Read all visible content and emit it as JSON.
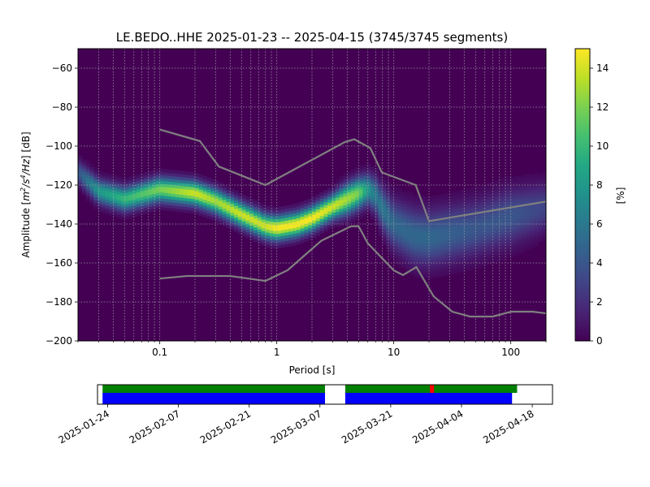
{
  "chart_data": [
    {
      "type": "heatmap",
      "title": "LE.BEDO..HHE   2025-01-23 -- 2025-04-15  (3745/3745 segments)",
      "xlabel": "Period [s]",
      "ylabel_prefix": "Amplitude [",
      "ylabel_unit": {
        "base1": "m",
        "sup1": "2",
        "base2": "/s",
        "sup2": "4",
        "base3": "/Hz"
      },
      "ylabel_suffix": "] [dB]",
      "x_scale": "log",
      "xlim": [
        0.02,
        200
      ],
      "ylim": [
        -200,
        -50
      ],
      "x_ticks": [
        {
          "value": 0.1,
          "label": "0.1"
        },
        {
          "value": 1,
          "label": "1"
        },
        {
          "value": 10,
          "label": "10"
        },
        {
          "value": 100,
          "label": "100"
        }
      ],
      "y_ticks": [
        {
          "value": -60,
          "label": "−60"
        },
        {
          "value": -80,
          "label": "−80"
        },
        {
          "value": -100,
          "label": "−100"
        },
        {
          "value": -120,
          "label": "−120"
        },
        {
          "value": -140,
          "label": "−140"
        },
        {
          "value": -160,
          "label": "−160"
        },
        {
          "value": -180,
          "label": "−180"
        },
        {
          "value": -200,
          "label": "−200"
        }
      ],
      "grid": true,
      "colormap": "viridis",
      "colorbar": {
        "label": "[%]",
        "range": [
          0,
          15
        ],
        "ticks": [
          {
            "value": 0,
            "label": "0"
          },
          {
            "value": 2,
            "label": "2"
          },
          {
            "value": 4,
            "label": "4"
          },
          {
            "value": 6,
            "label": "6"
          },
          {
            "value": 8,
            "label": "8"
          },
          {
            "value": 10,
            "label": "10"
          },
          {
            "value": 12,
            "label": "12"
          },
          {
            "value": 14,
            "label": "14"
          }
        ]
      },
      "density_ridge": {
        "period": [
          0.02,
          0.03,
          0.05,
          0.1,
          0.2,
          0.3,
          0.5,
          0.8,
          1.0,
          1.5,
          2.0,
          3.0,
          4.0,
          5.0,
          6.0,
          7.0,
          8.0,
          10,
          15,
          20,
          50,
          100,
          200
        ],
        "amplitude_db": [
          -113,
          -123,
          -127,
          -122,
          -124,
          -128,
          -135,
          -141,
          -142,
          -140,
          -137,
          -131,
          -127,
          -124,
          -122,
          -125,
          -132,
          -140,
          -146,
          -147,
          -142,
          -136,
          -131
        ],
        "peak_percent": [
          4,
          8,
          10,
          12,
          14,
          13,
          14,
          14,
          15,
          15,
          15,
          14,
          13,
          12,
          8,
          6,
          6,
          5,
          5,
          5,
          4,
          4,
          3
        ],
        "spread_db": [
          4,
          4,
          4,
          4,
          4,
          4,
          4,
          4,
          4,
          4,
          4,
          4,
          5,
          5,
          5,
          6,
          7,
          8,
          9,
          9,
          9,
          9,
          8
        ]
      },
      "noise_models": {
        "upper": {
          "period": [
            0.1,
            0.22,
            0.32,
            0.8,
            3.8,
            4.6,
            6.3,
            7.9,
            15.4,
            20,
            354.8
          ],
          "amplitude_db": [
            -91.5,
            -97.4,
            -110.5,
            -120,
            -98,
            -96.5,
            -101,
            -113.5,
            -120,
            -138.5,
            -126
          ]
        },
        "lower": {
          "period": [
            0.1,
            0.17,
            0.4,
            0.8,
            1.24,
            2.4,
            4.3,
            5.0,
            6.0,
            10,
            12,
            15.6,
            21.9,
            31.6,
            45,
            70,
            101,
            154,
            328
          ],
          "amplitude_db": [
            -168,
            -166.7,
            -166.7,
            -169.2,
            -163.7,
            -148.6,
            -141.2,
            -141.1,
            -149.9,
            -163.8,
            -166.2,
            -162.1,
            -177.1,
            -185,
            -187.5,
            -187.5,
            -185,
            -185,
            -187.5
          ]
        }
      }
    },
    {
      "type": "timeline",
      "x_type": "date",
      "xlim": [
        "2025-01-22",
        "2025-04-22"
      ],
      "x_ticks": [
        {
          "value": "2025-01-24",
          "label": "2025-01-24"
        },
        {
          "value": "2025-02-07",
          "label": "2025-02-07"
        },
        {
          "value": "2025-02-21",
          "label": "2025-02-21"
        },
        {
          "value": "2025-03-07",
          "label": "2025-03-07"
        },
        {
          "value": "2025-03-21",
          "label": "2025-03-21"
        },
        {
          "value": "2025-04-04",
          "label": "2025-04-04"
        },
        {
          "value": "2025-04-18",
          "label": "2025-04-18"
        }
      ],
      "coverage_green": [
        {
          "start": "2025-01-23",
          "end": "2025-03-08"
        },
        {
          "start": "2025-03-12",
          "end": "2025-04-15"
        }
      ],
      "coverage_blue": [
        {
          "start": "2025-01-23",
          "end": "2025-03-08"
        },
        {
          "start": "2025-03-12",
          "end": "2025-04-14"
        }
      ],
      "gap_marks": [
        {
          "date": "2025-03-29"
        }
      ],
      "colors": {
        "green": "#008000",
        "blue": "#0000ff",
        "gap": "#ff0000"
      }
    }
  ]
}
